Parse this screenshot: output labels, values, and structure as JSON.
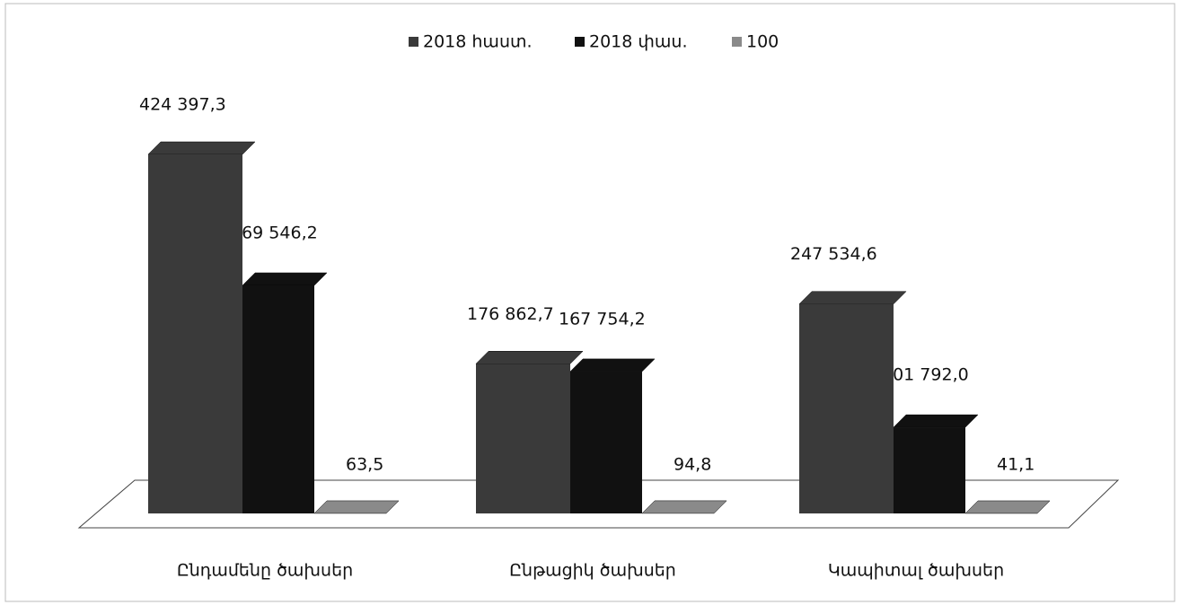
{
  "chart_data": {
    "type": "bar3d",
    "categories": [
      "Ընդամենը ծախսեր",
      "Ընթացիկ ծախսեր",
      "Կապիտալ ծախսեր"
    ],
    "series": [
      {
        "name": "2018 հաստ.",
        "color": "#3a3a3a",
        "values": [
          424397.3,
          176862.7,
          247534.6
        ],
        "value_labels": [
          "424 397,3",
          "176 862,7",
          "247 534,6"
        ]
      },
      {
        "name": "2018 փաս.",
        "color": "#111111",
        "values": [
          269546.2,
          167754.2,
          101792.0
        ],
        "value_labels": [
          "269 546,2",
          "167 754,2",
          "101 792,0"
        ]
      },
      {
        "name": "100",
        "color": "#8a8a8a",
        "values": [
          63.5,
          94.8,
          41.1
        ],
        "value_labels": [
          "63,5",
          "94,8",
          "41,1"
        ]
      }
    ]
  }
}
